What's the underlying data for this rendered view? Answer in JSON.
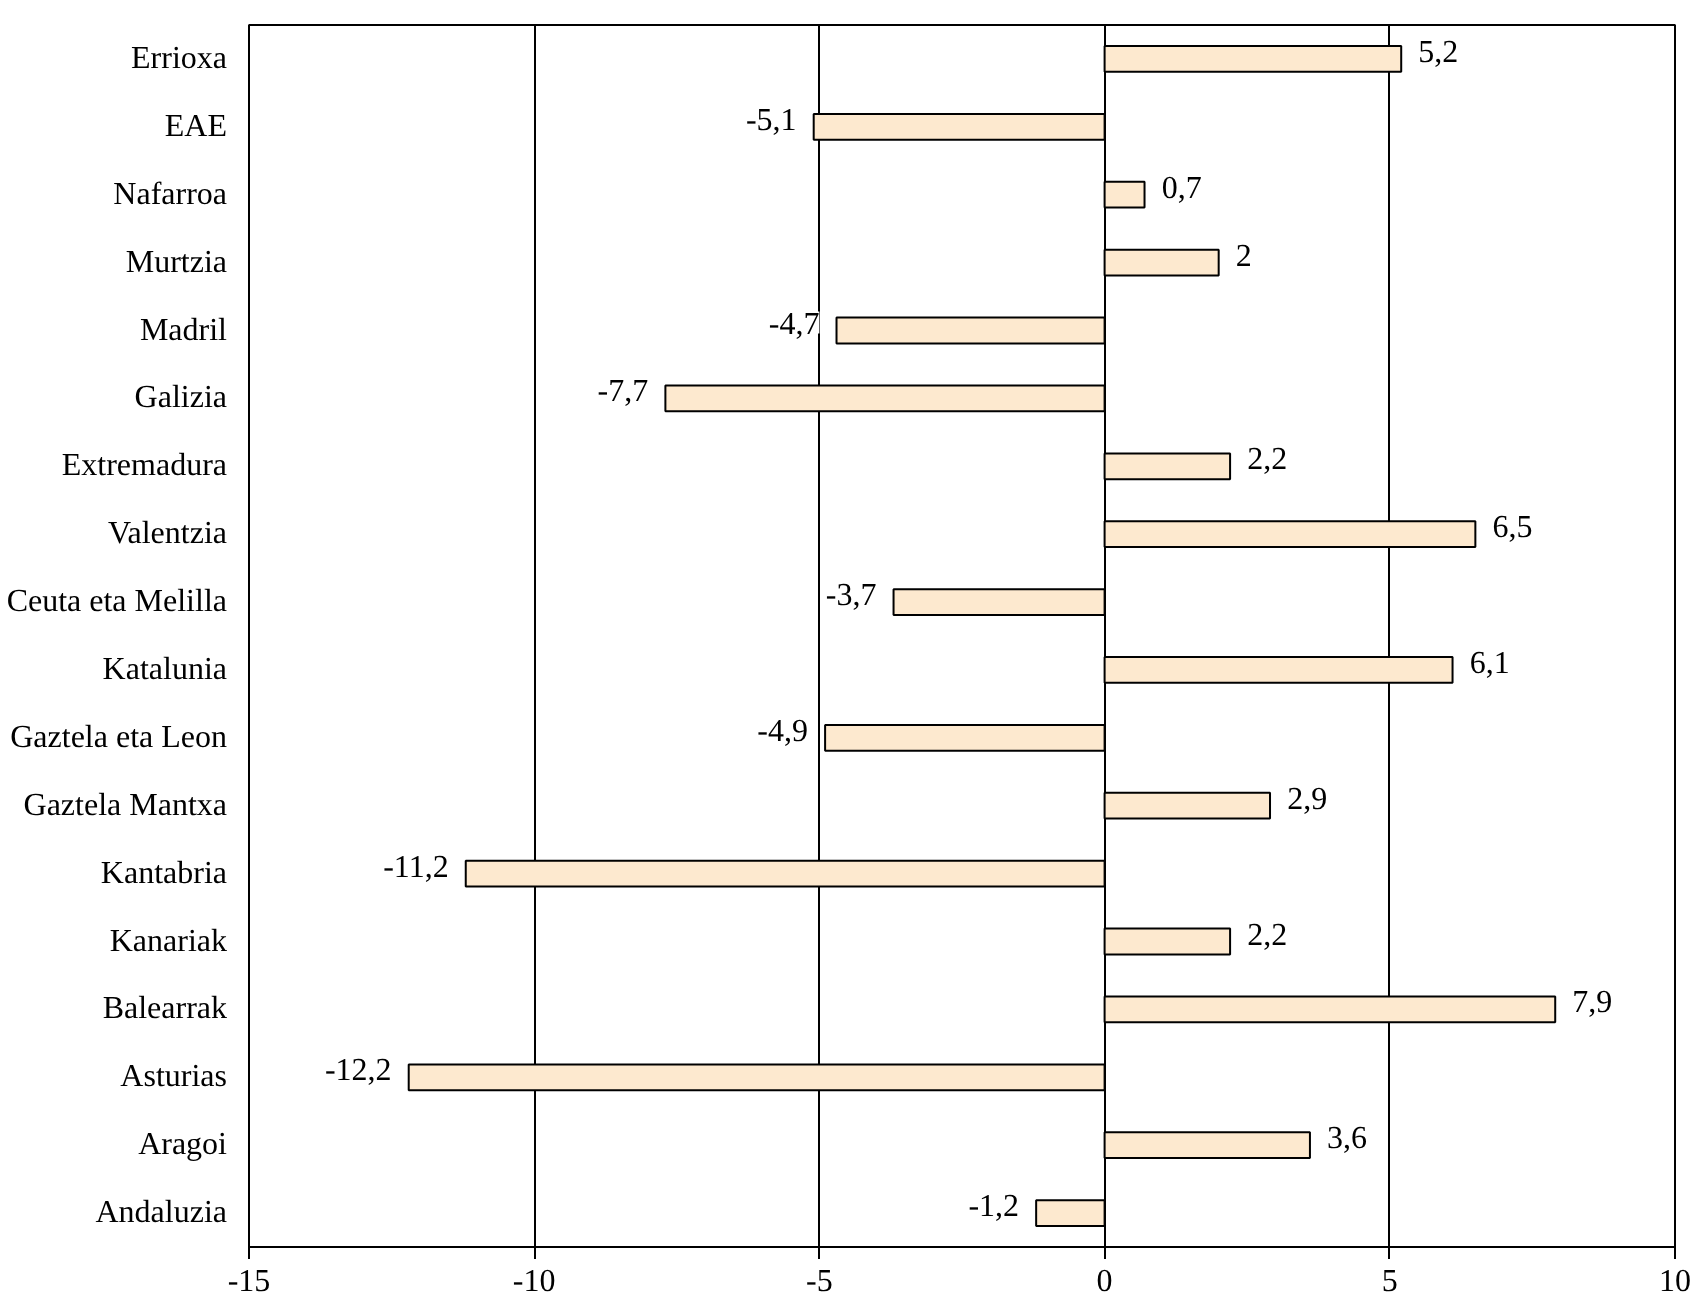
{
  "chart_data": {
    "type": "bar",
    "orientation": "horizontal",
    "categories": [
      "Errioxa",
      "EAE",
      "Nafarroa",
      "Murtzia",
      "Madril",
      "Galizia",
      "Extremadura",
      "Valentzia",
      "Ceuta eta Melilla",
      "Katalunia",
      "Gaztela eta Leon",
      "Gaztela Mantxa",
      "Kantabria",
      "Kanariak",
      "Balearrak",
      "Asturias",
      "Aragoi",
      "Andaluzia"
    ],
    "values": [
      5.2,
      -5.1,
      0.7,
      2,
      -4.7,
      -7.7,
      2.2,
      6.5,
      -3.7,
      6.1,
      -4.9,
      2.9,
      -11.2,
      2.2,
      7.9,
      -12.2,
      3.6,
      -1.2
    ],
    "value_labels": [
      "5,2",
      "-5,1",
      "0,7",
      "2",
      "-4,7",
      "-7,7",
      "2,2",
      "6,5",
      "-3,7",
      "6,1",
      "-4,9",
      "2,9",
      "-11,2",
      "2,2",
      "7,9",
      "-12,2",
      "3,6",
      "-1,2"
    ],
    "color": "#fde9cf",
    "xlim": [
      -15,
      10
    ],
    "xticks": [
      -15,
      -10,
      -5,
      0,
      5,
      10
    ],
    "grid": "x"
  }
}
